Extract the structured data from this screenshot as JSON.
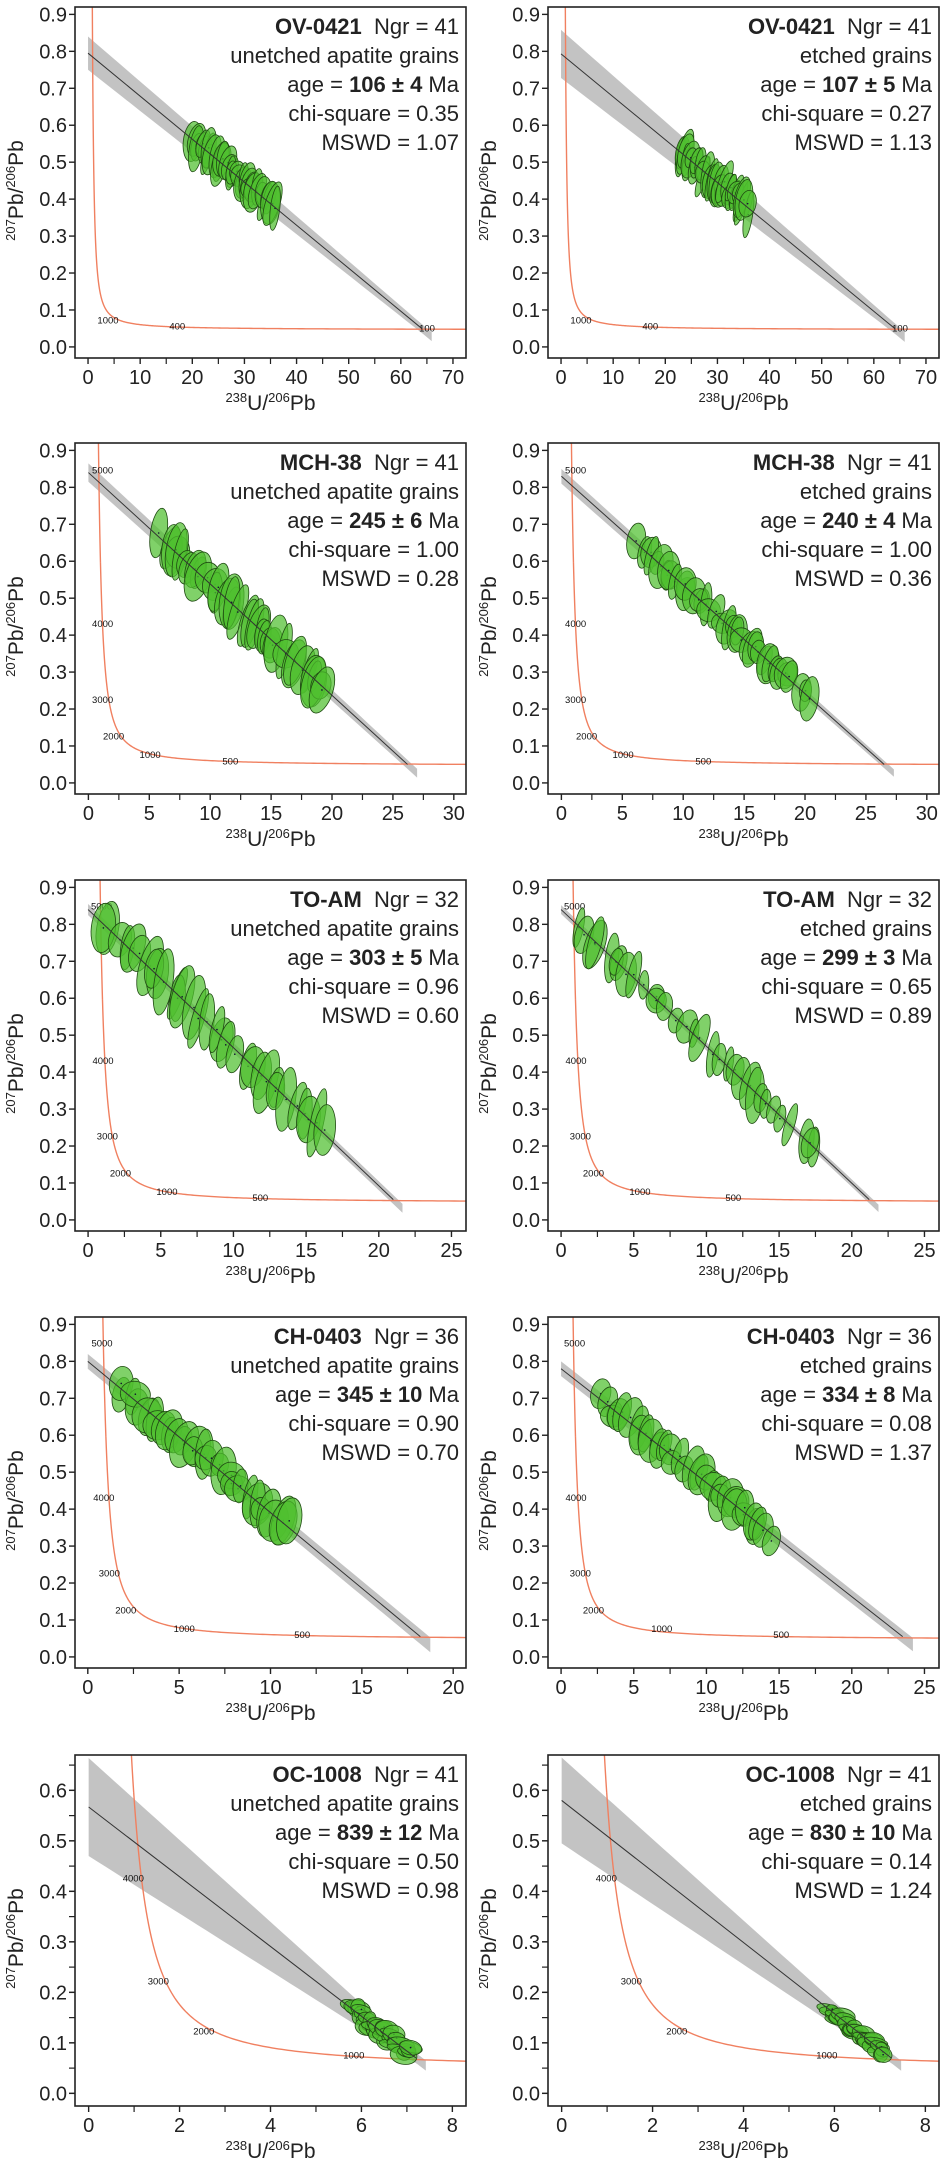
{
  "figure": {
    "xlabel": {
      "sup1": "238",
      "base1": "U/",
      "sup2": "206",
      "base2": "Pb"
    },
    "ylabel": {
      "sup1": "207",
      "base1": "Pb/",
      "sup2": "206",
      "base2": "Pb"
    },
    "colors": {
      "ellipse_fill": "#4fbf2f",
      "ellipse_stroke": "#1f4a12",
      "concordia": "#f08060",
      "regression_line": "#333333",
      "confidence_band": "#b8b8b8",
      "frame": "#222222",
      "text": "#222222"
    }
  },
  "chart_data": [
    {
      "type": "scatter",
      "subtype": "tera-wasserburg",
      "sample": "OV-0421",
      "ngr_label": "Ngr = 41",
      "treatment": "unetched apatite grains",
      "age_prefix": "age = ",
      "age": "106 ± 4",
      "age_unit": " Ma",
      "chi_square": "chi-square = 0.35",
      "mswd": "MSWD = 1.07",
      "xlim": [
        -2.5,
        72.5
      ],
      "ylim": [
        -0.03,
        0.92
      ],
      "xticks": [
        0,
        10,
        20,
        30,
        40,
        50,
        60,
        70
      ],
      "xminor": 5,
      "yticks": [
        0.0,
        0.1,
        0.2,
        0.3,
        0.4,
        0.5,
        0.6,
        0.7,
        0.8,
        0.9
      ],
      "yminor": null,
      "ydecimals": 1,
      "regression": {
        "intercept": 0.795,
        "x_end": 64,
        "y_end": 0.05,
        "band_at_0": 0.045,
        "band_at_end": 0.012
      },
      "concordia_labels": [
        {
          "age": "1000",
          "x": 1.8,
          "y": 0.072
        },
        {
          "age": "400",
          "x": 15.6,
          "y": 0.055
        },
        {
          "age": "100",
          "x": 63.5,
          "y": 0.05
        }
      ],
      "cluster": {
        "x_range": [
          20,
          36
        ],
        "n": 41,
        "rx": 1.3,
        "ry": 0.045,
        "spread": 0.018,
        "seed": 1
      }
    },
    {
      "type": "scatter",
      "subtype": "tera-wasserburg",
      "sample": "OV-0421",
      "ngr_label": "Ngr = 41",
      "treatment": "etched grains",
      "age_prefix": "age = ",
      "age": "107 ± 5",
      "age_unit": " Ma",
      "chi_square": "chi-square = 0.27",
      "mswd": "MSWD = 1.13",
      "xlim": [
        -2.5,
        72.5
      ],
      "ylim": [
        -0.03,
        0.92
      ],
      "xticks": [
        0,
        10,
        20,
        30,
        40,
        50,
        60,
        70
      ],
      "xminor": 5,
      "yticks": [
        0.0,
        0.1,
        0.2,
        0.3,
        0.4,
        0.5,
        0.6,
        0.7,
        0.8,
        0.9
      ],
      "yminor": null,
      "ydecimals": 1,
      "regression": {
        "intercept": 0.793,
        "x_end": 64,
        "y_end": 0.05,
        "band_at_0": 0.065,
        "band_at_end": 0.014
      },
      "concordia_labels": [
        {
          "age": "1000",
          "x": 1.8,
          "y": 0.072
        },
        {
          "age": "400",
          "x": 15.6,
          "y": 0.055
        },
        {
          "age": "100",
          "x": 63.5,
          "y": 0.05
        }
      ],
      "cluster": {
        "x_range": [
          23,
          36
        ],
        "n": 41,
        "rx": 1.2,
        "ry": 0.045,
        "spread": 0.02,
        "seed": 2
      }
    },
    {
      "type": "scatter",
      "subtype": "tera-wasserburg",
      "sample": "MCH-38",
      "ngr_label": "Ngr = 41",
      "treatment": "unetched apatite grains",
      "age_prefix": "age = ",
      "age": "245 ± 6",
      "age_unit": " Ma",
      "chi_square": "chi-square = 1.00",
      "mswd": "MSWD = 0.28",
      "xlim": [
        -1.1,
        31
      ],
      "ylim": [
        -0.03,
        0.92
      ],
      "xticks": [
        0,
        5,
        10,
        15,
        20,
        25,
        30
      ],
      "xminor": 2.5,
      "yticks": [
        0.0,
        0.1,
        0.2,
        0.3,
        0.4,
        0.5,
        0.6,
        0.7,
        0.8,
        0.9
      ],
      "yminor": null,
      "ydecimals": 1,
      "regression": {
        "intercept": 0.84,
        "x_end": 26.2,
        "y_end": 0.05,
        "band_at_0": 0.025,
        "band_at_end": 0.012
      },
      "concordia_labels": [
        {
          "age": "5000",
          "x": 0.3,
          "y": 0.845
        },
        {
          "age": "4000",
          "x": 0.3,
          "y": 0.43
        },
        {
          "age": "3000",
          "x": 0.3,
          "y": 0.225
        },
        {
          "age": "2000",
          "x": 1.2,
          "y": 0.126
        },
        {
          "age": "1000",
          "x": 4.2,
          "y": 0.075
        },
        {
          "age": "500",
          "x": 11,
          "y": 0.058
        }
      ],
      "cluster": {
        "x_range": [
          6,
          19.5
        ],
        "n": 41,
        "rx": 0.75,
        "ry": 0.06,
        "spread": 0.012,
        "seed": 3
      }
    },
    {
      "type": "scatter",
      "subtype": "tera-wasserburg",
      "sample": "MCH-38",
      "ngr_label": "Ngr = 41",
      "treatment": "etched grains",
      "age_prefix": "age = ",
      "age": "240 ± 4",
      "age_unit": " Ma",
      "chi_square": "chi-square = 1.00",
      "mswd": "MSWD = 0.36",
      "xlim": [
        -1.1,
        31
      ],
      "ylim": [
        -0.03,
        0.92
      ],
      "xticks": [
        0,
        5,
        10,
        15,
        20,
        25,
        30
      ],
      "xminor": 2.5,
      "yticks": [
        0.0,
        0.1,
        0.2,
        0.3,
        0.4,
        0.5,
        0.6,
        0.7,
        0.8,
        0.9
      ],
      "yminor": null,
      "ydecimals": 1,
      "regression": {
        "intercept": 0.83,
        "x_end": 26.5,
        "y_end": 0.05,
        "band_at_0": 0.02,
        "band_at_end": 0.01
      },
      "concordia_labels": [
        {
          "age": "5000",
          "x": 0.3,
          "y": 0.845
        },
        {
          "age": "4000",
          "x": 0.3,
          "y": 0.43
        },
        {
          "age": "3000",
          "x": 0.3,
          "y": 0.225
        },
        {
          "age": "2000",
          "x": 1.2,
          "y": 0.126
        },
        {
          "age": "1000",
          "x": 4.2,
          "y": 0.075
        },
        {
          "age": "500",
          "x": 11,
          "y": 0.058
        }
      ],
      "cluster": {
        "x_range": [
          6.5,
          20
        ],
        "n": 41,
        "rx": 0.7,
        "ry": 0.045,
        "spread": 0.012,
        "seed": 4
      }
    },
    {
      "type": "scatter",
      "subtype": "tera-wasserburg",
      "sample": "TO-AM",
      "ngr_label": "Ngr = 32",
      "treatment": "unetched apatite grains",
      "age_prefix": "age = ",
      "age": "303 ± 5",
      "age_unit": " Ma",
      "chi_square": "chi-square = 0.96",
      "mswd": "MSWD = 0.60",
      "xlim": [
        -0.9,
        26
      ],
      "ylim": [
        -0.03,
        0.92
      ],
      "xticks": [
        0,
        5,
        10,
        15,
        20,
        25
      ],
      "xminor": 2.5,
      "yticks": [
        0.0,
        0.1,
        0.2,
        0.3,
        0.4,
        0.5,
        0.6,
        0.7,
        0.8,
        0.9
      ],
      "yminor": null,
      "ydecimals": 1,
      "regression": {
        "intercept": 0.84,
        "x_end": 21,
        "y_end": 0.055,
        "band_at_0": 0.015,
        "band_at_end": 0.012
      },
      "concordia_labels": [
        {
          "age": "5000",
          "x": 0.2,
          "y": 0.848
        },
        {
          "age": "4000",
          "x": 0.3,
          "y": 0.43
        },
        {
          "age": "3000",
          "x": 0.6,
          "y": 0.226
        },
        {
          "age": "2000",
          "x": 1.5,
          "y": 0.126
        },
        {
          "age": "1000",
          "x": 4.7,
          "y": 0.075
        },
        {
          "age": "500",
          "x": 11.3,
          "y": 0.059
        }
      ],
      "cluster": {
        "x_range": [
          1,
          16
        ],
        "n": 32,
        "rx": 0.6,
        "ry": 0.07,
        "spread": 0.015,
        "seed": 5
      }
    },
    {
      "type": "scatter",
      "subtype": "tera-wasserburg",
      "sample": "TO-AM",
      "ngr_label": "Ngr = 32",
      "treatment": "etched grains",
      "age_prefix": "age = ",
      "age": "299 ± 3",
      "age_unit": " Ma",
      "chi_square": "chi-square = 0.65",
      "mswd": "MSWD = 0.89",
      "xlim": [
        -0.9,
        26
      ],
      "ylim": [
        -0.03,
        0.92
      ],
      "xticks": [
        0,
        5,
        10,
        15,
        20,
        25
      ],
      "xminor": 2.5,
      "yticks": [
        0.0,
        0.1,
        0.2,
        0.3,
        0.4,
        0.5,
        0.6,
        0.7,
        0.8,
        0.9
      ],
      "yminor": null,
      "ydecimals": 1,
      "regression": {
        "intercept": 0.84,
        "x_end": 21.2,
        "y_end": 0.055,
        "band_at_0": 0.012,
        "band_at_end": 0.01
      },
      "concordia_labels": [
        {
          "age": "5000",
          "x": 0.2,
          "y": 0.848
        },
        {
          "age": "4000",
          "x": 0.3,
          "y": 0.43
        },
        {
          "age": "3000",
          "x": 0.6,
          "y": 0.226
        },
        {
          "age": "2000",
          "x": 1.5,
          "y": 0.126
        },
        {
          "age": "1000",
          "x": 4.7,
          "y": 0.075
        },
        {
          "age": "500",
          "x": 11.3,
          "y": 0.059
        }
      ],
      "cluster": {
        "x_range": [
          1,
          17.5
        ],
        "n": 32,
        "rx": 0.5,
        "ry": 0.055,
        "spread": 0.01,
        "seed": 6
      }
    },
    {
      "type": "scatter",
      "subtype": "tera-wasserburg",
      "sample": "CH-0403",
      "ngr_label": "Ngr = 36",
      "treatment": "unetched apatite grains",
      "age_prefix": "age = ",
      "age": "345 ± 10",
      "age_unit": " Ma",
      "chi_square": "chi-square = 0.90",
      "mswd": "MSWD = 0.70",
      "xlim": [
        -0.7,
        20.7
      ],
      "ylim": [
        -0.03,
        0.92
      ],
      "xticks": [
        0,
        5,
        10,
        15,
        20
      ],
      "xminor": 2.5,
      "yticks": [
        0.0,
        0.1,
        0.2,
        0.3,
        0.4,
        0.5,
        0.6,
        0.7,
        0.8,
        0.9
      ],
      "yminor": null,
      "ydecimals": 1,
      "regression": {
        "intercept": 0.8,
        "x_end": 18.2,
        "y_end": 0.055,
        "band_at_0": 0.02,
        "band_at_end": 0.02
      },
      "concordia_labels": [
        {
          "age": "5000",
          "x": 0.2,
          "y": 0.848
        },
        {
          "age": "4000",
          "x": 0.3,
          "y": 0.43
        },
        {
          "age": "3000",
          "x": 0.6,
          "y": 0.226
        },
        {
          "age": "2000",
          "x": 1.5,
          "y": 0.126
        },
        {
          "age": "1000",
          "x": 4.7,
          "y": 0.075
        },
        {
          "age": "500",
          "x": 11.3,
          "y": 0.059
        }
      ],
      "cluster": {
        "x_range": [
          1.8,
          11
        ],
        "n": 36,
        "rx": 0.6,
        "ry": 0.05,
        "spread": 0.02,
        "seed": 7
      }
    },
    {
      "type": "scatter",
      "subtype": "tera-wasserburg",
      "sample": "CH-0403",
      "ngr_label": "Ngr = 36",
      "treatment": "etched grains",
      "age_prefix": "age = ",
      "age": "334 ± 8",
      "age_unit": " Ma",
      "chi_square": "chi-square = 0.08",
      "mswd": "MSWD = 1.37",
      "xlim": [
        -0.9,
        26
      ],
      "ylim": [
        -0.03,
        0.92
      ],
      "xticks": [
        0,
        5,
        10,
        15,
        20,
        25
      ],
      "xminor": 2.5,
      "yticks": [
        0.0,
        0.1,
        0.2,
        0.3,
        0.4,
        0.5,
        0.6,
        0.7,
        0.8,
        0.9
      ],
      "yminor": null,
      "ydecimals": 1,
      "regression": {
        "intercept": 0.78,
        "x_end": 23.5,
        "y_end": 0.055,
        "band_at_0": 0.02,
        "band_at_end": 0.018
      },
      "concordia_labels": [
        {
          "age": "5000",
          "x": 0.2,
          "y": 0.848
        },
        {
          "age": "4000",
          "x": 0.3,
          "y": 0.43
        },
        {
          "age": "3000",
          "x": 0.6,
          "y": 0.226
        },
        {
          "age": "2000",
          "x": 1.5,
          "y": 0.126
        },
        {
          "age": "1000",
          "x": 6.2,
          "y": 0.075
        },
        {
          "age": "500",
          "x": 14.6,
          "y": 0.059
        }
      ],
      "cluster": {
        "x_range": [
          2.8,
          14.5
        ],
        "n": 36,
        "rx": 0.7,
        "ry": 0.045,
        "spread": 0.02,
        "seed": 8
      }
    },
    {
      "type": "scatter",
      "subtype": "tera-wasserburg",
      "sample": "OC-1008",
      "ngr_label": "Ngr = 41",
      "treatment": "unetched apatite grains",
      "age_prefix": "age = ",
      "age": "839 ± 12",
      "age_unit": " Ma",
      "chi_square": "chi-square = 0.50",
      "mswd": "MSWD = 0.98",
      "xlim": [
        -0.3,
        8.3
      ],
      "ylim": [
        -0.025,
        0.67
      ],
      "xticks": [
        0,
        2,
        4,
        6,
        8
      ],
      "xminor": 1,
      "yticks": [
        0.0,
        0.1,
        0.2,
        0.3,
        0.4,
        0.5,
        0.6
      ],
      "yminor": 0.05,
      "ydecimals": 1,
      "regression": {
        "intercept": 0.567,
        "x_end": 7.2,
        "y_end": 0.07,
        "band_at_0": 0.097,
        "band_at_end": 0.01
      },
      "concordia_labels": [
        {
          "age": "4000",
          "x": 0.75,
          "y": 0.425
        },
        {
          "age": "3000",
          "x": 1.3,
          "y": 0.222
        },
        {
          "age": "2000",
          "x": 2.3,
          "y": 0.123
        },
        {
          "age": "1000",
          "x": 5.6,
          "y": 0.075
        }
      ],
      "cluster": {
        "x_range": [
          5.8,
          7.1
        ],
        "n": 41,
        "rx": 0.22,
        "ry": 0.013,
        "spread": 0.014,
        "seed": 9
      }
    },
    {
      "type": "scatter",
      "subtype": "tera-wasserburg",
      "sample": "OC-1008",
      "ngr_label": "Ngr = 41",
      "treatment": "etched grains",
      "age_prefix": "age = ",
      "age": "830 ± 10",
      "age_unit": " Ma",
      "chi_square": "chi-square = 0.14",
      "mswd": "MSWD = 1.24",
      "xlim": [
        -0.3,
        8.3
      ],
      "ylim": [
        -0.025,
        0.67
      ],
      "xticks": [
        0,
        2,
        4,
        6,
        8
      ],
      "xminor": 1,
      "yticks": [
        0.0,
        0.1,
        0.2,
        0.3,
        0.4,
        0.5,
        0.6
      ],
      "yminor": 0.05,
      "ydecimals": 1,
      "regression": {
        "intercept": 0.58,
        "x_end": 7.25,
        "y_end": 0.07,
        "band_at_0": 0.085,
        "band_at_end": 0.01
      },
      "concordia_labels": [
        {
          "age": "4000",
          "x": 0.75,
          "y": 0.425
        },
        {
          "age": "3000",
          "x": 1.3,
          "y": 0.222
        },
        {
          "age": "2000",
          "x": 2.3,
          "y": 0.123
        },
        {
          "age": "1000",
          "x": 5.6,
          "y": 0.075
        }
      ],
      "cluster": {
        "x_range": [
          5.9,
          7.1
        ],
        "n": 41,
        "rx": 0.2,
        "ry": 0.011,
        "spread": 0.012,
        "seed": 10
      }
    }
  ]
}
